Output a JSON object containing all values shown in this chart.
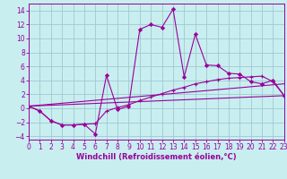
{
  "background_color": "#c8eef0",
  "grid_color": "#a0c8d0",
  "line_color": "#990099",
  "xlabel": "Windchill (Refroidissement éolien,°C)",
  "xlim": [
    0,
    23
  ],
  "ylim": [
    -4.5,
    15
  ],
  "xticks": [
    0,
    1,
    2,
    3,
    4,
    5,
    6,
    7,
    8,
    9,
    10,
    11,
    12,
    13,
    14,
    15,
    16,
    17,
    18,
    19,
    20,
    21,
    22,
    23
  ],
  "yticks": [
    -4,
    -2,
    0,
    2,
    4,
    6,
    8,
    10,
    12,
    14
  ],
  "series1_x": [
    0,
    1,
    2,
    3,
    4,
    5,
    6,
    7,
    8,
    9,
    10,
    11,
    12,
    13,
    14,
    15,
    16,
    17,
    18,
    19,
    20,
    21,
    22,
    23
  ],
  "series1_y": [
    0.3,
    -0.4,
    -1.8,
    -2.4,
    -2.4,
    -2.3,
    -3.7,
    4.7,
    -0.2,
    0.3,
    11.3,
    12.0,
    11.6,
    14.2,
    4.5,
    10.6,
    6.2,
    6.1,
    5.0,
    4.9,
    3.8,
    3.5,
    4.0,
    1.8
  ],
  "series2_x": [
    0,
    1,
    2,
    3,
    4,
    5,
    6,
    7,
    8,
    9,
    10,
    11,
    12,
    13,
    14,
    15,
    16,
    17,
    18,
    19,
    20,
    21,
    22,
    23
  ],
  "series2_y": [
    0.3,
    -0.4,
    -1.8,
    -2.4,
    -2.4,
    -2.3,
    -2.2,
    -0.4,
    0.1,
    0.5,
    1.1,
    1.6,
    2.1,
    2.6,
    3.0,
    3.5,
    3.8,
    4.1,
    4.3,
    4.4,
    4.5,
    4.6,
    3.8,
    1.8
  ],
  "series3_x": [
    0,
    23
  ],
  "series3_y": [
    0.3,
    1.8
  ],
  "series4_x": [
    0,
    23
  ],
  "series4_y": [
    0.3,
    3.5
  ],
  "fontsize_xlabel": 6,
  "fontsize_ticks": 5.5
}
